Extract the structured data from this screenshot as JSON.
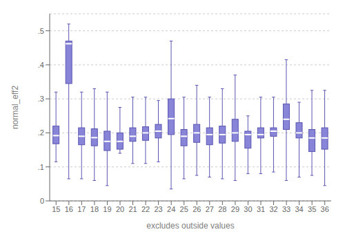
{
  "chart_data": {
    "type": "box",
    "xlabel": "excludes outside values",
    "ylabel": "normal_eff2",
    "categories": [
      15,
      16,
      17,
      18,
      19,
      20,
      21,
      22,
      23,
      24,
      25,
      26,
      27,
      28,
      29,
      30,
      31,
      32,
      33,
      34,
      35,
      36
    ],
    "boxes": [
      {
        "whislo": 0.115,
        "q1": 0.168,
        "med": 0.192,
        "q3": 0.22,
        "whishi": 0.32
      },
      {
        "whislo": 0.065,
        "q1": 0.345,
        "med": 0.462,
        "q3": 0.47,
        "whishi": 0.52
      },
      {
        "whislo": 0.065,
        "q1": 0.165,
        "med": 0.19,
        "q3": 0.215,
        "whishi": 0.32
      },
      {
        "whislo": 0.06,
        "q1": 0.162,
        "med": 0.186,
        "q3": 0.212,
        "whishi": 0.33
      },
      {
        "whislo": 0.045,
        "q1": 0.148,
        "med": 0.175,
        "q3": 0.205,
        "whishi": 0.32
      },
      {
        "whislo": 0.14,
        "q1": 0.152,
        "med": 0.175,
        "q3": 0.2,
        "whishi": 0.275
      },
      {
        "whislo": 0.11,
        "q1": 0.175,
        "med": 0.19,
        "q3": 0.215,
        "whishi": 0.305
      },
      {
        "whislo": 0.11,
        "q1": 0.178,
        "med": 0.2,
        "q3": 0.218,
        "whishi": 0.305
      },
      {
        "whislo": 0.115,
        "q1": 0.185,
        "med": 0.205,
        "q3": 0.225,
        "whishi": 0.295
      },
      {
        "whislo": 0.035,
        "q1": 0.195,
        "med": 0.242,
        "q3": 0.3,
        "whishi": 0.47
      },
      {
        "whislo": 0.065,
        "q1": 0.162,
        "med": 0.19,
        "q3": 0.21,
        "whishi": 0.305
      },
      {
        "whislo": 0.075,
        "q1": 0.172,
        "med": 0.2,
        "q3": 0.225,
        "whishi": 0.34
      },
      {
        "whislo": 0.07,
        "q1": 0.165,
        "med": 0.195,
        "q3": 0.215,
        "whishi": 0.305
      },
      {
        "whislo": 0.065,
        "q1": 0.17,
        "med": 0.195,
        "q3": 0.22,
        "whishi": 0.33
      },
      {
        "whislo": 0.06,
        "q1": 0.175,
        "med": 0.2,
        "q3": 0.24,
        "whishi": 0.37
      },
      {
        "whislo": 0.08,
        "q1": 0.155,
        "med": 0.195,
        "q3": 0.205,
        "whishi": 0.25
      },
      {
        "whislo": 0.08,
        "q1": 0.185,
        "med": 0.195,
        "q3": 0.215,
        "whishi": 0.305
      },
      {
        "whislo": 0.085,
        "q1": 0.19,
        "med": 0.205,
        "q3": 0.215,
        "whishi": 0.305
      },
      {
        "whislo": 0.06,
        "q1": 0.21,
        "med": 0.24,
        "q3": 0.285,
        "whishi": 0.415
      },
      {
        "whislo": 0.07,
        "q1": 0.185,
        "med": 0.2,
        "q3": 0.23,
        "whishi": 0.29
      },
      {
        "whislo": 0.075,
        "q1": 0.145,
        "med": 0.185,
        "q3": 0.21,
        "whishi": 0.325
      },
      {
        "whislo": 0.045,
        "q1": 0.152,
        "med": 0.185,
        "q3": 0.215,
        "whishi": 0.325
      }
    ],
    "ylim": [
      0,
      0.55
    ],
    "yticks": [
      0,
      {
        "value": 0.1,
        "label": ".1"
      },
      {
        "value": 0.2,
        "label": ".2"
      },
      {
        "value": 0.3,
        "label": ".3"
      },
      {
        "value": 0.4,
        "label": ".4"
      },
      {
        "value": 0.5,
        "label": ".5"
      }
    ],
    "grid": true
  }
}
